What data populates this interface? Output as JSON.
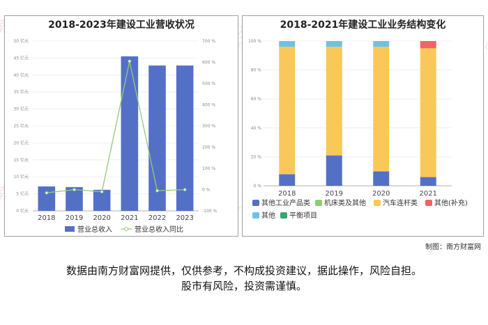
{
  "chart_data": [
    {
      "type": "bar",
      "title": "2018-2023年建设工业营收状况",
      "categories": [
        "2018",
        "2019",
        "2020",
        "2021",
        "2022",
        "2023"
      ],
      "y_left": {
        "ticks": [
          "0 亿元",
          "5 亿元",
          "10 亿元",
          "15 亿元",
          "20 亿元",
          "25 亿元",
          "30 亿元",
          "35 亿元",
          "40 亿元",
          "45 亿元",
          "50 亿元"
        ],
        "range": [
          0,
          50
        ]
      },
      "y_right": {
        "ticks": [
          "-100 %",
          "0 %",
          "100 %",
          "200 %",
          "300 %",
          "400 %",
          "500 %",
          "600 %",
          "700 %"
        ],
        "range": [
          -100,
          700
        ]
      },
      "series": [
        {
          "name": "营业总收入",
          "kind": "bar",
          "axis": "left",
          "color": "#5470c6",
          "values": [
            7.2,
            7.0,
            6.2,
            45.5,
            42.8,
            42.8
          ]
        },
        {
          "name": "营业总收入同比",
          "kind": "line",
          "axis": "right",
          "color": "#91cc75",
          "values": [
            -15,
            0,
            -10,
            605,
            -5,
            0
          ]
        }
      ],
      "legend_position": "bottom"
    },
    {
      "type": "bar",
      "title": "2018-2021年建设工业业务结构变化",
      "stacked": true,
      "categories": [
        "2018",
        "2019",
        "2020",
        "2021"
      ],
      "y": {
        "ticks": [
          "0 %",
          "20 %",
          "40 %",
          "60 %",
          "80 %",
          "100 %"
        ],
        "range": [
          0,
          100
        ]
      },
      "series": [
        {
          "name": "其他工业产品类",
          "color": "#5470c6",
          "values": [
            8,
            21,
            10,
            6
          ]
        },
        {
          "name": "机床类及其他",
          "color": "#91cc75",
          "values": [
            0,
            0,
            0,
            0
          ]
        },
        {
          "name": "汽车连杆类",
          "color": "#fac858",
          "values": [
            88,
            75,
            86,
            89
          ]
        },
        {
          "name": "其他(补充)",
          "color": "#ee6666",
          "values": [
            0,
            0,
            0,
            5
          ]
        },
        {
          "name": "其他",
          "color": "#73c0de",
          "values": [
            4,
            4,
            4,
            0
          ]
        },
        {
          "name": "平衡项目",
          "color": "#3ba272",
          "values": [
            0,
            0,
            0,
            0
          ]
        }
      ],
      "legend_position": "bottom"
    }
  ],
  "credit": "制图：南方财富网",
  "footer": {
    "line1": "数据由南方财富网提供，仅供参考，不构成投资建议，据此操作，风险自担。",
    "line2": "股市有风险，投资需谨慎。"
  },
  "watermark": {
    "cn": "南方财富网",
    "en": "outhmoney.com"
  }
}
